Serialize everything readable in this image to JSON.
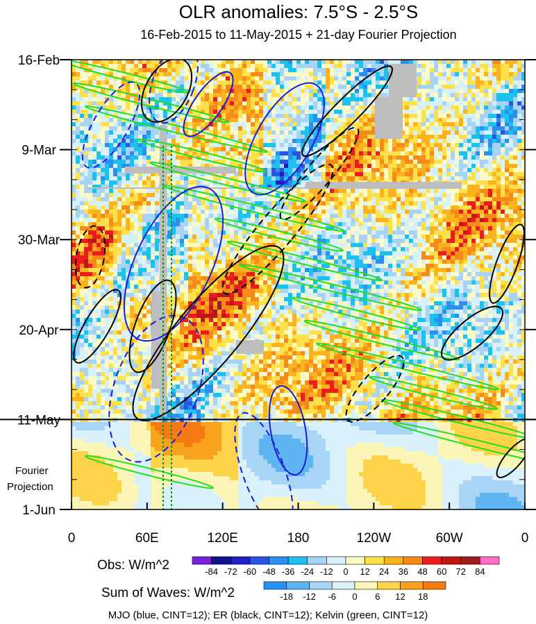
{
  "title": "OLR anomalies: 7.5°S - 2.5°S",
  "subtitle": "16-Feb-2015 to 11-May-2015 + 21-day Fourier Projection",
  "projection_label_line1": "Fourier",
  "projection_label_line2": "Projection",
  "footer": "MJO (blue, CINT=12); ER (black, CINT=12); Kelvin (green, CINT=12)",
  "colors": {
    "mjo": "#1a1ad8",
    "er": "#000000",
    "kelvin": "#22dd22",
    "missing": "#bdbdbd",
    "dashed_vertical": "#1a8a1a"
  },
  "chart_data": {
    "type": "heatmap",
    "title": "OLR anomalies: 7.5°S - 2.5°S",
    "subtitle": "16-Feb-2015 to 11-May-2015 + 21-day Fourier Projection",
    "x": {
      "tick_labels": [
        "0",
        "60E",
        "120E",
        "180",
        "120W",
        "60W",
        "0"
      ],
      "tick_values_deg_east": [
        0,
        60,
        120,
        180,
        240,
        300,
        360
      ],
      "range": [
        0,
        360
      ]
    },
    "y": {
      "tick_labels": [
        "16-Feb",
        "9-Mar",
        "30-Mar",
        "20-Apr",
        "11-May",
        "1-Jun"
      ],
      "tick_dates": [
        "2015-02-16",
        "2015-03-09",
        "2015-03-30",
        "2015-04-20",
        "2015-05-11",
        "2015-06-01"
      ],
      "range": [
        "2015-02-16",
        "2015-06-01"
      ],
      "direction": "time increases downward"
    },
    "observation_end": "2015-05-11",
    "colorbars": [
      {
        "label": "Obs: W/m^2",
        "levels": [
          -84,
          -72,
          -60,
          -48,
          -36,
          -24,
          -12,
          0,
          12,
          24,
          36,
          48,
          60,
          72,
          84
        ],
        "colors": [
          "#7b1fd6",
          "#12128f",
          "#1f1fc4",
          "#2a55e0",
          "#2c8ff0",
          "#1cc2ee",
          "#a9d3f5",
          "#d7f1fb",
          "#fcfac7",
          "#fde04a",
          "#fbb21d",
          "#f68a1a",
          "#ec1c1c",
          "#c01616",
          "#9b1e1e",
          "#ff6ec7"
        ]
      },
      {
        "label": "Sum of Waves: W/m^2",
        "levels": [
          -18,
          -12,
          -6,
          0,
          6,
          12,
          18
        ],
        "colors": [
          "#2a8ff2",
          "#5fb4f2",
          "#a8d4f5",
          "#d9f1fb",
          "#fcf5b8",
          "#fdd34a",
          "#f9a31c",
          "#f57a14"
        ]
      }
    ],
    "contours": [
      {
        "name": "MJO",
        "color": "blue",
        "cint": 12
      },
      {
        "name": "ER",
        "color": "black",
        "cint": 12
      },
      {
        "name": "Kelvin",
        "color": "green",
        "cint": 12
      }
    ]
  }
}
